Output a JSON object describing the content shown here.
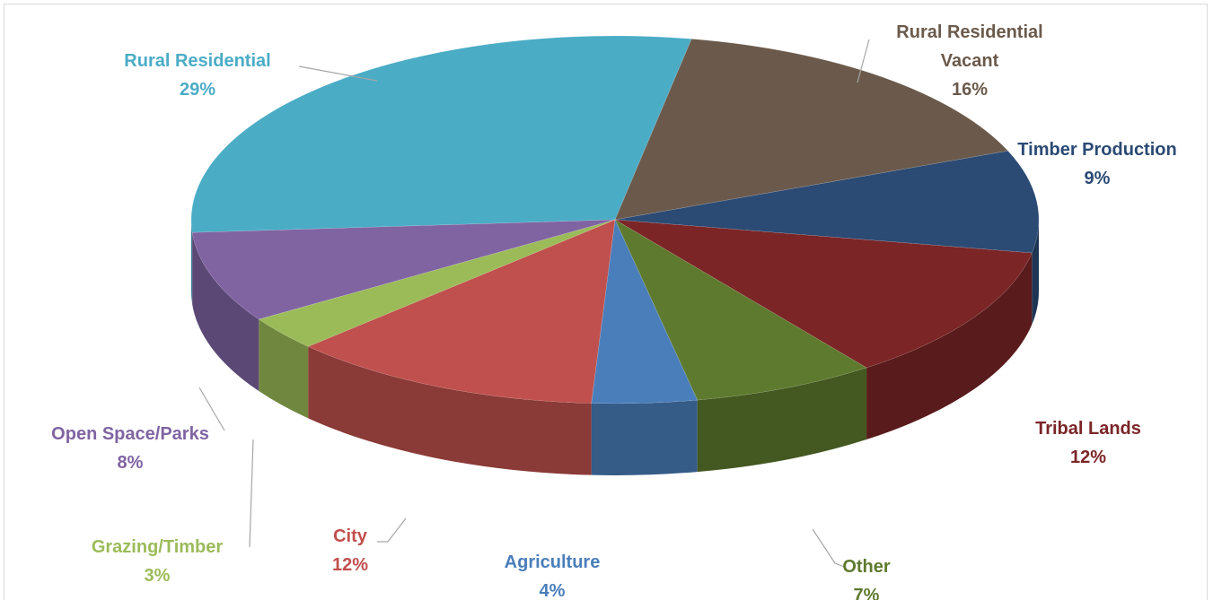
{
  "chart_data": {
    "type": "pie3d",
    "categories": [
      "Rural Residential",
      "Rural Residential Vacant",
      "Timber Production",
      "Tribal Lands",
      "Other",
      "Agriculture",
      "City",
      "Grazing/Timber",
      "Open Space/Parks"
    ],
    "values": [
      29,
      16,
      9,
      12,
      7,
      4,
      12,
      3,
      8
    ],
    "value_labels": [
      "29%",
      "16%",
      "9%",
      "12%",
      "7%",
      "4%",
      "12%",
      "3%",
      "8%"
    ],
    "colors": [
      "#4bacc6",
      "#6b5a4b",
      "#2b4a74",
      "#7b2527",
      "#5e7a2e",
      "#4a7ebb",
      "#c0504d",
      "#9bbb59",
      "#8064a2"
    ]
  }
}
